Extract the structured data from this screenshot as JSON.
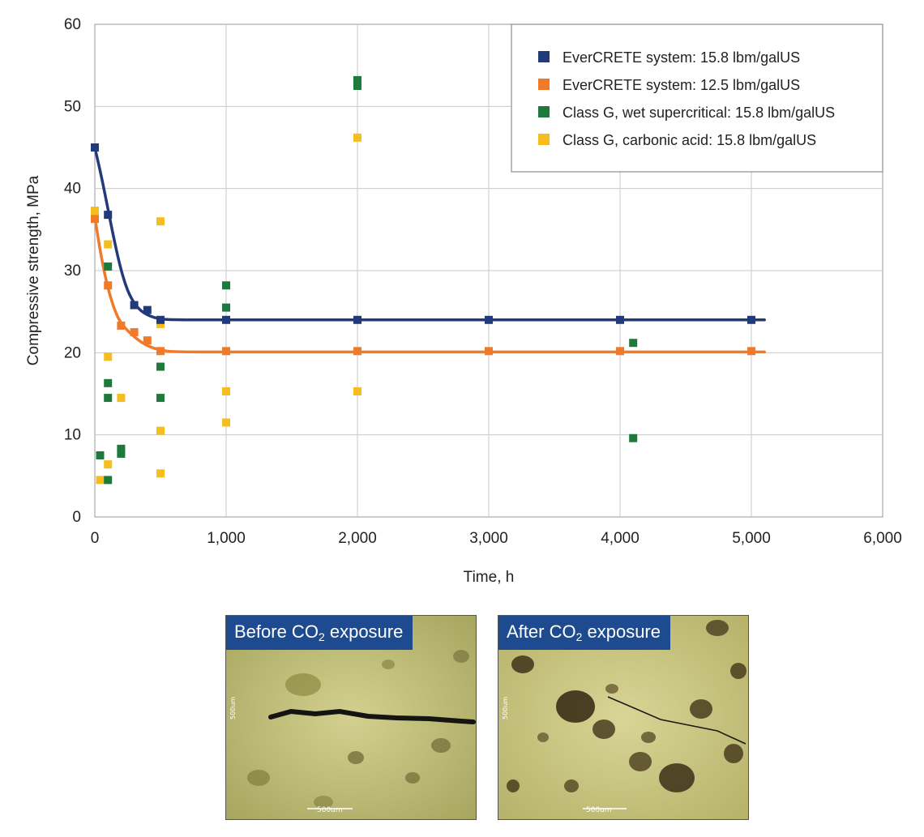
{
  "chart_data": {
    "type": "scatter",
    "xlabel": "Time, h",
    "ylabel": "Compressive strength, MPa",
    "xlim": [
      0,
      6000
    ],
    "ylim": [
      0,
      60
    ],
    "x_ticks": [
      0,
      1000,
      2000,
      3000,
      4000,
      5000,
      6000
    ],
    "x_tick_labels": [
      "0",
      "1,000",
      "2,000",
      "3,000",
      "4,000",
      "5,000",
      "6,000"
    ],
    "y_ticks": [
      0,
      10,
      20,
      30,
      40,
      50,
      60
    ],
    "y_tick_labels": [
      "0",
      "10",
      "20",
      "30",
      "40",
      "50",
      "60"
    ],
    "grid": true,
    "legend_position": "top-right",
    "series": [
      {
        "name": "EverCRETE system: 15.8 lbm/galUS",
        "color": "#233a7a",
        "fit_line": true,
        "points": [
          [
            0,
            45
          ],
          [
            100,
            36.8
          ],
          [
            300,
            25.8
          ],
          [
            400,
            25.2
          ],
          [
            500,
            24
          ],
          [
            1000,
            24
          ],
          [
            2000,
            24
          ],
          [
            3000,
            24
          ],
          [
            4000,
            24
          ],
          [
            5000,
            24
          ]
        ],
        "curve": [
          [
            0,
            45
          ],
          [
            50,
            41.5
          ],
          [
            100,
            37.5
          ],
          [
            150,
            33.5
          ],
          [
            200,
            30
          ],
          [
            250,
            27.5
          ],
          [
            300,
            26
          ],
          [
            350,
            25.1
          ],
          [
            400,
            24.6
          ],
          [
            450,
            24.3
          ],
          [
            500,
            24.1
          ],
          [
            600,
            24
          ],
          [
            1000,
            24
          ],
          [
            2000,
            24
          ],
          [
            3000,
            24
          ],
          [
            4000,
            24
          ],
          [
            5100,
            24
          ]
        ]
      },
      {
        "name": "EverCRETE system: 12.5 lbm/galUS",
        "color": "#f07a2a",
        "fit_line": true,
        "points": [
          [
            0,
            36.3
          ],
          [
            100,
            28.2
          ],
          [
            200,
            23.3
          ],
          [
            300,
            22.5
          ],
          [
            400,
            21.5
          ],
          [
            500,
            20.2
          ],
          [
            1000,
            20.2
          ],
          [
            2000,
            20.2
          ],
          [
            3000,
            20.2
          ],
          [
            4000,
            20.2
          ],
          [
            5000,
            20.2
          ]
        ],
        "curve": [
          [
            0,
            36.5
          ],
          [
            50,
            31.5
          ],
          [
            100,
            27.8
          ],
          [
            150,
            25.2
          ],
          [
            200,
            23.5
          ],
          [
            300,
            21.9
          ],
          [
            400,
            20.8
          ],
          [
            500,
            20.3
          ],
          [
            600,
            20.1
          ],
          [
            1000,
            20.1
          ],
          [
            2000,
            20.1
          ],
          [
            3000,
            20.1
          ],
          [
            4000,
            20.1
          ],
          [
            5100,
            20.1
          ]
        ]
      },
      {
        "name": "Class G, wet supercritical: 15.8 lbm/galUS",
        "color": "#1e7a3c",
        "fit_line": false,
        "points": [
          [
            40,
            7.5
          ],
          [
            100,
            4.5
          ],
          [
            100,
            14.5
          ],
          [
            100,
            16.3
          ],
          [
            100,
            30.5
          ],
          [
            200,
            7.7
          ],
          [
            200,
            8.3
          ],
          [
            500,
            14.5
          ],
          [
            500,
            18.3
          ],
          [
            1000,
            25.5
          ],
          [
            1000,
            28.2
          ],
          [
            2000,
            52.5
          ],
          [
            2000,
            53.2
          ],
          [
            4100,
            21.2
          ],
          [
            4100,
            9.6
          ]
        ]
      },
      {
        "name": "Class G, carbonic acid: 15.8 lbm/galUS",
        "color": "#f5bd1f",
        "fit_line": false,
        "points": [
          [
            0,
            37.3
          ],
          [
            40,
            4.5
          ],
          [
            100,
            6.4
          ],
          [
            100,
            19.5
          ],
          [
            100,
            33.2
          ],
          [
            200,
            14.5
          ],
          [
            500,
            5.3
          ],
          [
            500,
            10.5
          ],
          [
            500,
            23.5
          ],
          [
            500,
            36
          ],
          [
            1000,
            11.5
          ],
          [
            1000,
            15.3
          ],
          [
            2000,
            15.3
          ],
          [
            2000,
            46.2
          ]
        ]
      }
    ]
  },
  "photos": [
    {
      "label_pre": "Before CO",
      "label_sub": "2",
      "label_post": " exposure",
      "scale_label": "500um",
      "side_label": "500um"
    },
    {
      "label_pre": "After CO",
      "label_sub": "2",
      "label_post": " exposure",
      "scale_label": "500um",
      "side_label": "500um"
    }
  ]
}
